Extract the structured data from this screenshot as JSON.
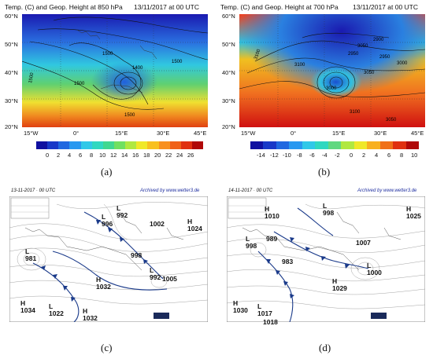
{
  "panel_a": {
    "title": "Temp. (C) and Geop. Height at 850 hPa",
    "date": "13/11/2017 at 00 UTC",
    "lat_labels": [
      "60°N",
      "50°N",
      "40°N",
      "30°N",
      "20°N"
    ],
    "lon_labels": [
      "15°W",
      "0°",
      "15°E",
      "30°E",
      "45°E"
    ],
    "colorbar_ticks": [
      "0",
      "2",
      "4",
      "6",
      "8",
      "10",
      "12",
      "14",
      "16",
      "18",
      "20",
      "22",
      "24",
      "26"
    ],
    "contour_labels": [
      "1500",
      "1500",
      "1500",
      "1500",
      "1500",
      "1400"
    ],
    "caption": "(a)"
  },
  "panel_b": {
    "title": "Temp. (C) and Geop. Height at 700 hPa",
    "date": "13/11/2017 at 00 UTC",
    "lat_labels": [
      "60°N",
      "50°N",
      "40°N",
      "30°N",
      "20°N"
    ],
    "lon_labels": [
      "15°W",
      "0°",
      "15°E",
      "30°E",
      "45°E"
    ],
    "colorbar_ticks": [
      "-14",
      "-12",
      "-10",
      "-8",
      "-6",
      "-4",
      "-2",
      "0",
      "2",
      "4",
      "6",
      "8",
      "10"
    ],
    "contour_labels": [
      "3100",
      "3050",
      "2900",
      "2950",
      "2950",
      "3000",
      "3050",
      "3100",
      "3100",
      "3000",
      "3050"
    ],
    "caption": "(b)"
  },
  "panel_c": {
    "header": "13-11-2017 · 00 UTC",
    "archive": "Archived by www.wetter3.de",
    "pressure": [
      {
        "type": "L",
        "value": "992"
      },
      {
        "type": "L",
        "value": "996"
      },
      {
        "type": "",
        "value": "1002"
      },
      {
        "type": "H",
        "value": "1024"
      },
      {
        "type": "L",
        "value": "981"
      },
      {
        "type": "",
        "value": "998"
      },
      {
        "type": "L",
        "value": "992"
      },
      {
        "type": "",
        "value": "1005"
      },
      {
        "type": "H",
        "value": "1032"
      },
      {
        "type": "H",
        "value": "1034"
      },
      {
        "type": "L",
        "value": "1022"
      },
      {
        "type": "H",
        "value": "1032"
      }
    ],
    "caption": "(c)"
  },
  "panel_d": {
    "header": "14-11-2017 · 00 UTC",
    "archive": "Archived by www.wetter3.de",
    "pressure": [
      {
        "type": "H",
        "value": "1010"
      },
      {
        "type": "L",
        "value": "998"
      },
      {
        "type": "H",
        "value": "1025"
      },
      {
        "type": "",
        "value": "989"
      },
      {
        "type": "L",
        "value": "998"
      },
      {
        "type": "",
        "value": "983"
      },
      {
        "type": "",
        "value": "1007"
      },
      {
        "type": "L",
        "value": "1000"
      },
      {
        "type": "H",
        "value": "1029"
      },
      {
        "type": "H",
        "value": "1030"
      },
      {
        "type": "L",
        "value": "1017"
      },
      {
        "type": "",
        "value": "1018"
      }
    ],
    "caption": "(d)"
  },
  "colors": {
    "deep_blue": "#1a1aa0",
    "cyan": "#20c8e0",
    "green": "#60d060",
    "yellow": "#f0e020",
    "orange": "#f08020",
    "red": "#d01010"
  }
}
